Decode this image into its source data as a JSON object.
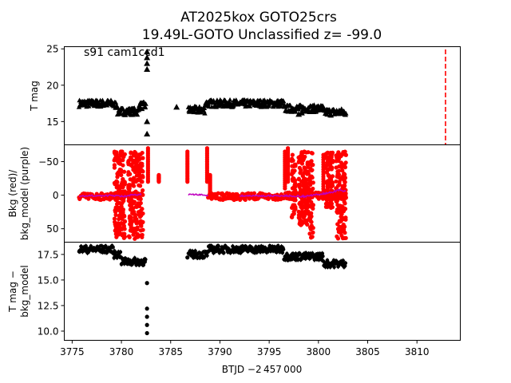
{
  "title_line1": "AT2025kox  GOTO25crs",
  "title_line2": "19.49L-GOTO Unclassified z= -99.0",
  "annotation": "s91 cam1ccd1",
  "xlabel": "BTJD −2 457 000",
  "xlim": [
    3774.2,
    3814.4
  ],
  "xticks": [
    "3775",
    "3780",
    "3785",
    "3790",
    "3795",
    "3800",
    "3805",
    "3810"
  ],
  "colors": {
    "bkg": "#ff0000",
    "bkg_model": "#bf00bf",
    "points": "#000000",
    "vline": "#ff0000"
  },
  "chart_data": [
    {
      "type": "scatter",
      "ylabel": "T mag",
      "ylim": [
        25.3,
        11.8
      ],
      "yticks": [
        "15",
        "20",
        "25"
      ],
      "tick_values": [
        15,
        20,
        25
      ],
      "vline_x": 3812.9,
      "segments": [
        {
          "x0": 3775.7,
          "x1": 3779.2,
          "y": 17.5
        },
        {
          "x0": 3779.2,
          "x1": 3779.6,
          "y": 17.3
        },
        {
          "x0": 3779.6,
          "x1": 3781.8,
          "y": 16.4
        },
        {
          "x0": 3781.8,
          "x1": 3782.5,
          "y": 17.2
        },
        {
          "x0": 3786.8,
          "x1": 3788.5,
          "y": 16.6
        },
        {
          "x0": 3788.5,
          "x1": 3796.5,
          "y": 17.5
        },
        {
          "x0": 3796.5,
          "x1": 3800.5,
          "y": 16.8
        },
        {
          "x0": 3800.5,
          "x1": 3802.8,
          "y": 16.3
        }
      ],
      "outliers": [
        {
          "x": 3782.6,
          "y": 13.3
        },
        {
          "x": 3782.6,
          "y": 15.0
        },
        {
          "x": 3782.6,
          "y": 22.2
        },
        {
          "x": 3782.6,
          "y": 23.0
        },
        {
          "x": 3782.6,
          "y": 23.8
        },
        {
          "x": 3782.6,
          "y": 24.6
        },
        {
          "x": 3785.6,
          "y": 17.0
        },
        {
          "x": 3798.0,
          "y": 16.0
        },
        {
          "x": 3798.3,
          "y": 16.2
        }
      ]
    },
    {
      "type": "scatter",
      "ylabel": "Bkg (red)/\nbkg_model (purple)",
      "ylim": [
        -75,
        70
      ],
      "yticks": [
        "50",
        "0",
        "−50"
      ],
      "tick_values": [
        50,
        0,
        -50
      ],
      "bkg_segments": [
        {
          "x0": 3775.7,
          "x1": 3779.5,
          "y": 2.0
        },
        {
          "x0": 3779.5,
          "x1": 3782.0,
          "y": 1.0
        },
        {
          "x0": 3788.8,
          "x1": 3796.8,
          "y": 2.0
        },
        {
          "x0": 3796.8,
          "x1": 3802.8,
          "y": 1.0
        }
      ],
      "bkg_scatter_ranges": [
        {
          "x0": 3779.3,
          "x1": 3780.4,
          "y0": -65,
          "y1": 65
        },
        {
          "x0": 3780.7,
          "x1": 3782.2,
          "y0": -65,
          "y1": 65
        },
        {
          "x0": 3797.3,
          "x1": 3797.7,
          "y0": -60,
          "y1": 35
        },
        {
          "x0": 3798.0,
          "x1": 3799.0,
          "y0": -65,
          "y1": 45
        },
        {
          "x0": 3799.1,
          "x1": 3799.5,
          "y0": -65,
          "y1": 65
        },
        {
          "x0": 3800.8,
          "x1": 3801.5,
          "y0": -65,
          "y1": 20
        },
        {
          "x0": 3801.8,
          "x1": 3802.8,
          "y0": -65,
          "y1": 65
        }
      ],
      "bkg_verticals": [
        {
          "x": 3782.7,
          "y0": -20,
          "y1": -70
        },
        {
          "x": 3783.8,
          "y0": -20,
          "y1": -30
        },
        {
          "x": 3786.7,
          "y0": -20,
          "y1": -65
        },
        {
          "x": 3788.7,
          "y0": -20,
          "y1": -70
        },
        {
          "x": 3789.0,
          "y0": -5,
          "y1": -30
        },
        {
          "x": 3796.6,
          "y0": -10,
          "y1": -65
        },
        {
          "x": 3796.9,
          "y0": -20,
          "y1": -70
        },
        {
          "x": 3800.5,
          "y0": 5,
          "y1": -60
        }
      ],
      "model_points": [
        [
          3775.7,
          1.5
        ],
        [
          3777.0,
          1.0
        ],
        [
          3779.0,
          0.5
        ],
        [
          3780.4,
          2.0
        ],
        [
          3781.0,
          0.0
        ],
        [
          3782.0,
          -1.0
        ],
        [
          3786.8,
          -1.0
        ],
        [
          3788.8,
          0.0
        ],
        [
          3792.0,
          1.0
        ],
        [
          3795.0,
          1.0
        ],
        [
          3797.0,
          1.0
        ],
        [
          3798.5,
          2.0
        ],
        [
          3799.5,
          0.0
        ],
        [
          3800.5,
          -2.0
        ],
        [
          3801.5,
          -5.0
        ],
        [
          3802.2,
          -8.0
        ],
        [
          3802.8,
          -5.0
        ]
      ]
    },
    {
      "type": "scatter",
      "ylabel": "T mag −\nbkg_model",
      "ylim": [
        18.7,
        9.1
      ],
      "yticks": [
        "10.0",
        "12.5",
        "15.0",
        "17.5"
      ],
      "tick_values": [
        10.0,
        12.5,
        15.0,
        17.5
      ],
      "segments": [
        {
          "x0": 3775.7,
          "x1": 3779.2,
          "y": 18.0
        },
        {
          "x0": 3779.2,
          "x1": 3780.0,
          "y": 17.5
        },
        {
          "x0": 3780.0,
          "x1": 3782.5,
          "y": 16.8
        },
        {
          "x0": 3786.8,
          "x1": 3788.8,
          "y": 17.5
        },
        {
          "x0": 3788.8,
          "x1": 3796.5,
          "y": 18.0
        },
        {
          "x0": 3796.5,
          "x1": 3800.5,
          "y": 17.3
        },
        {
          "x0": 3800.5,
          "x1": 3802.8,
          "y": 16.6
        }
      ],
      "outliers": [
        {
          "x": 3782.6,
          "y": 9.8
        },
        {
          "x": 3782.6,
          "y": 10.6
        },
        {
          "x": 3782.6,
          "y": 11.4
        },
        {
          "x": 3782.6,
          "y": 12.2
        },
        {
          "x": 3782.6,
          "y": 14.7
        },
        {
          "x": 3786.7,
          "y": 17.2
        },
        {
          "x": 3787.6,
          "y": 17.4
        }
      ]
    }
  ]
}
